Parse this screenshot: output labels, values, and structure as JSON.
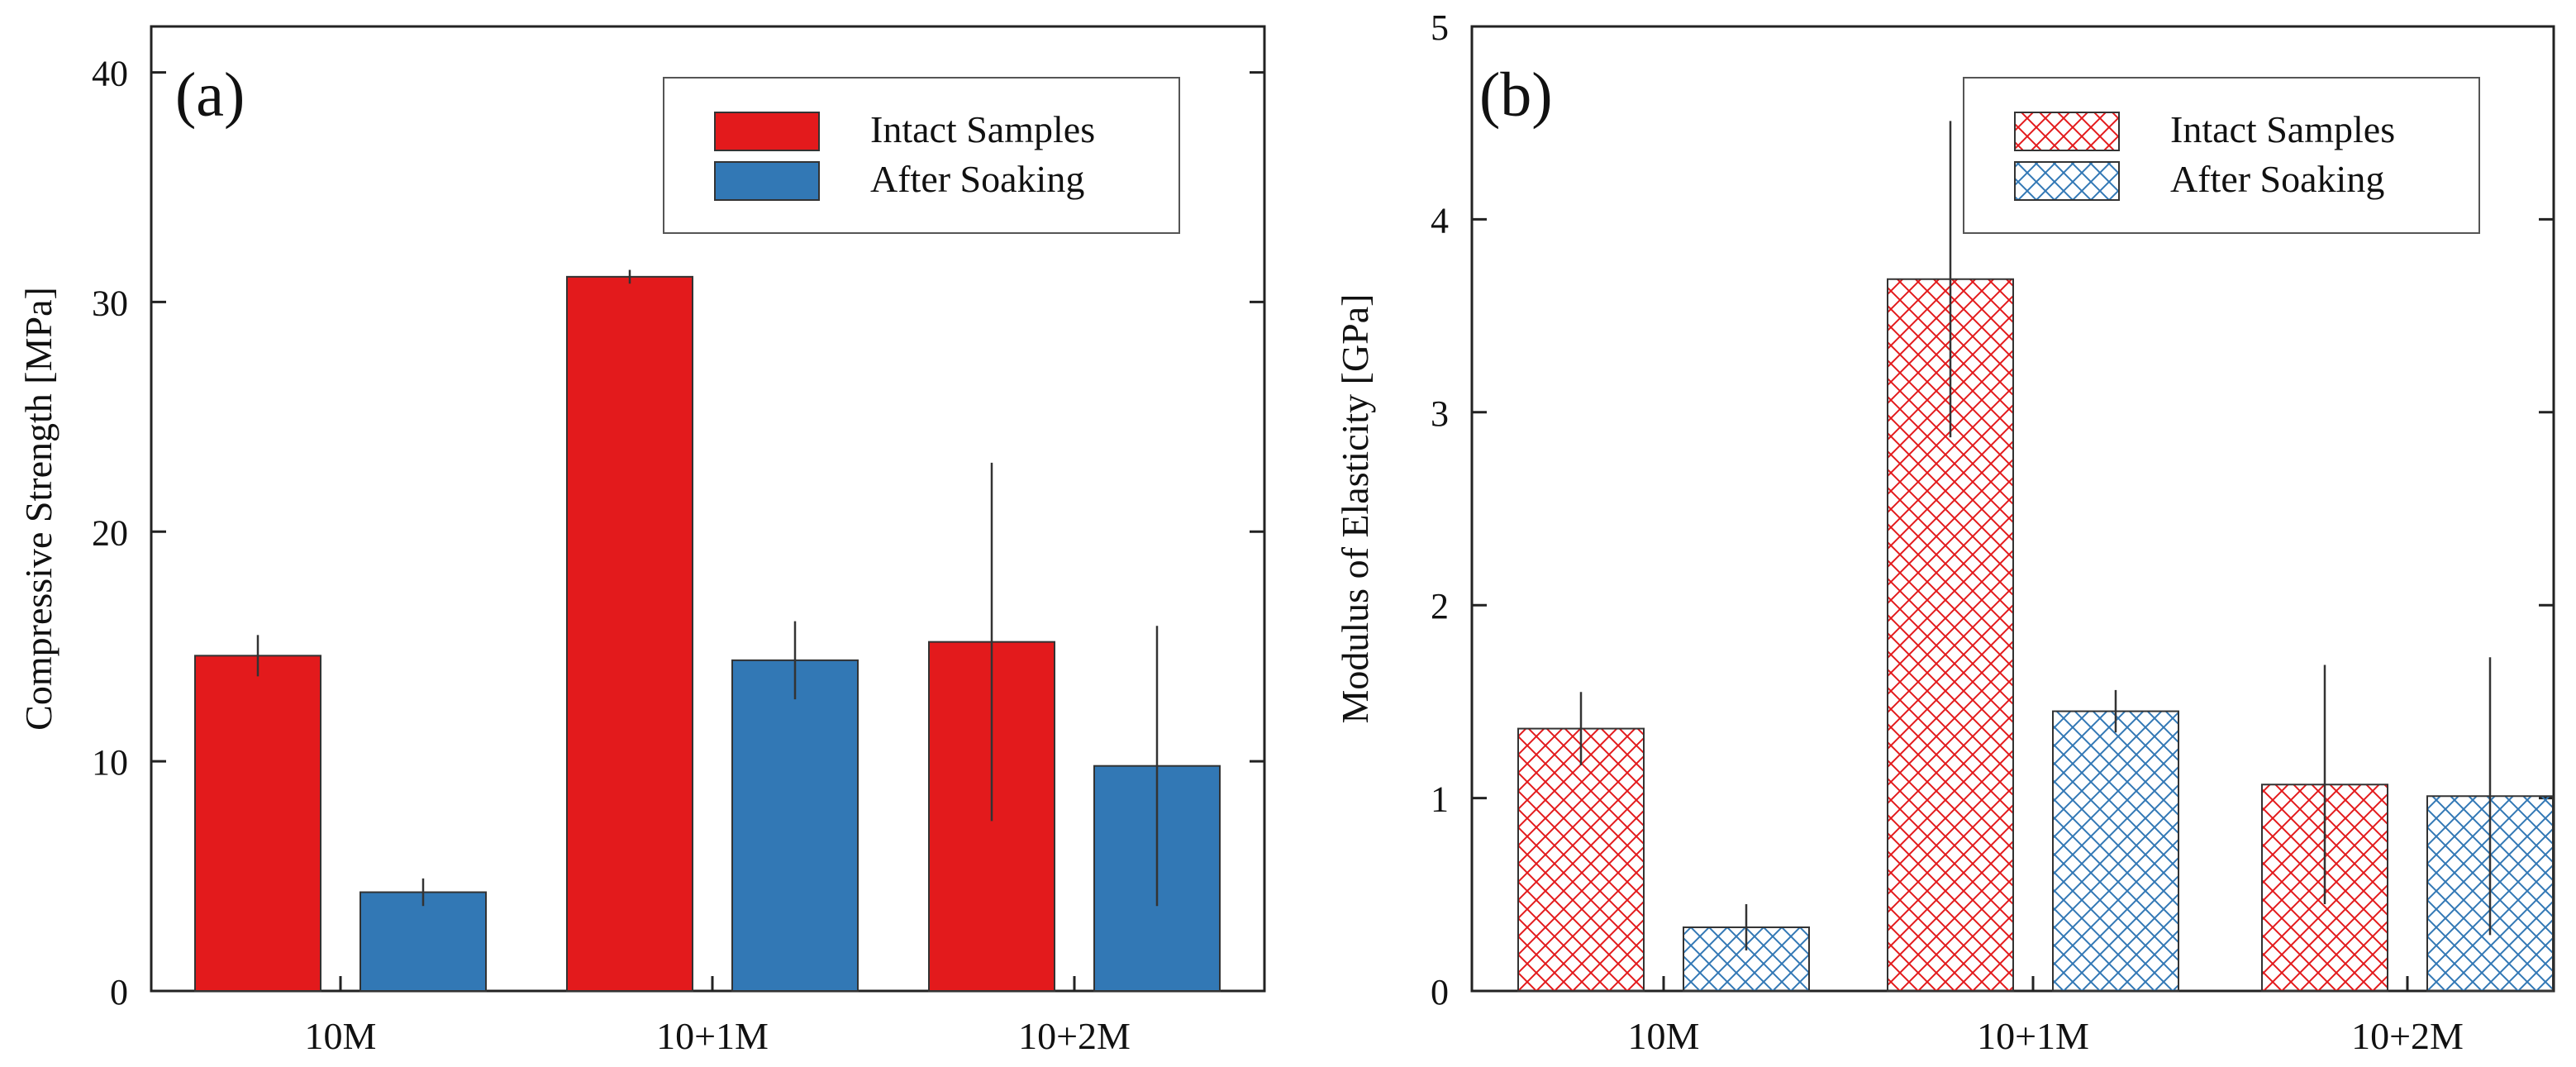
{
  "chart_data": [
    {
      "type": "bar",
      "panel_label": "(a)",
      "categories": [
        "10M",
        "10+1M",
        "10+2M"
      ],
      "ylabel": "Compressive Strength [MPa]",
      "xlabel": "",
      "ylim": [
        0,
        42
      ],
      "yticks": [
        0,
        10,
        20,
        30,
        40
      ],
      "legend_position": "top-right",
      "fill_style": "solid",
      "series": [
        {
          "name": "Intact Samples",
          "color": "#e31a1c",
          "values": [
            14.6,
            31.1,
            15.2
          ],
          "errors": [
            0.9,
            0.3,
            7.8
          ]
        },
        {
          "name": "After Soaking",
          "color": "#3278b5",
          "values": [
            4.3,
            14.4,
            9.8
          ],
          "errors": [
            0.6,
            1.7,
            6.1
          ]
        }
      ]
    },
    {
      "type": "bar",
      "panel_label": "(b)",
      "categories": [
        "10M",
        "10+1M",
        "10+2M"
      ],
      "ylabel": "Modulus of Elasticity [GPa]",
      "xlabel": "",
      "ylim": [
        0,
        5
      ],
      "yticks": [
        0,
        1,
        2,
        3,
        4,
        5
      ],
      "legend_position": "top-right",
      "fill_style": "crosshatch",
      "series": [
        {
          "name": "Intact Samples",
          "color": "#e31a1c",
          "values": [
            1.36,
            3.69,
            1.07
          ],
          "errors": [
            0.19,
            0.82,
            0.62
          ]
        },
        {
          "name": "After Soaking",
          "color": "#3278b5",
          "values": [
            0.33,
            1.45,
            1.01
          ],
          "errors": [
            0.12,
            0.11,
            0.72
          ]
        }
      ]
    }
  ]
}
